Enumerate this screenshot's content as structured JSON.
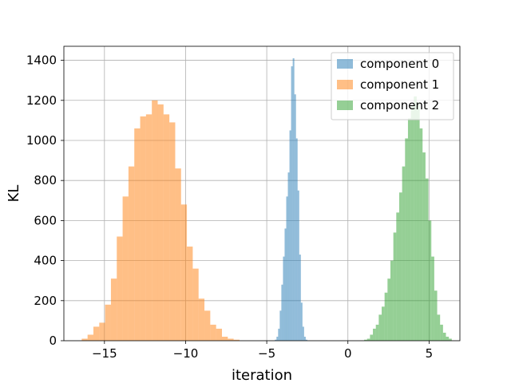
{
  "chart_data": {
    "type": "bar",
    "title": "",
    "xlabel": "iteration",
    "ylabel": "KL",
    "xlim": [
      -17.5,
      6.9
    ],
    "ylim": [
      0,
      1470
    ],
    "xticks": [
      -15,
      -10,
      -5,
      0,
      5
    ],
    "xtick_labels": [
      "−15",
      "−10",
      "−5",
      "0",
      "5"
    ],
    "yticks": [
      0,
      200,
      400,
      600,
      800,
      1000,
      1200,
      1400
    ],
    "ytick_labels": [
      "0",
      "200",
      "400",
      "600",
      "800",
      "1000",
      "1200",
      "1400"
    ],
    "grid": true,
    "legend_position": "top-right",
    "series": [
      {
        "name": "component 0",
        "color": "#1f77b4",
        "bin_start": -4.5,
        "bin_width": 0.1,
        "counts": [
          5,
          20,
          60,
          150,
          280,
          420,
          560,
          720,
          840,
          1050,
          1370,
          1410,
          1230,
          1010,
          750,
          430,
          190,
          70,
          20,
          5
        ]
      },
      {
        "name": "component 1",
        "color": "#ff7f0e",
        "bin_start": -16.4,
        "bin_width": 0.36,
        "counts": [
          10,
          30,
          70,
          90,
          180,
          310,
          520,
          720,
          870,
          1060,
          1120,
          1130,
          1200,
          1180,
          1130,
          1090,
          860,
          680,
          470,
          360,
          210,
          150,
          80,
          60,
          20,
          10,
          5
        ]
      },
      {
        "name": "component 2",
        "color": "#2ca02c",
        "bin_start": 1.0,
        "bin_width": 0.18,
        "counts": [
          5,
          10,
          30,
          60,
          80,
          130,
          170,
          240,
          310,
          400,
          540,
          640,
          740,
          870,
          1010,
          1110,
          1180,
          1220,
          1190,
          1060,
          940,
          810,
          600,
          420,
          250,
          130,
          80,
          40,
          20,
          10
        ]
      }
    ]
  }
}
